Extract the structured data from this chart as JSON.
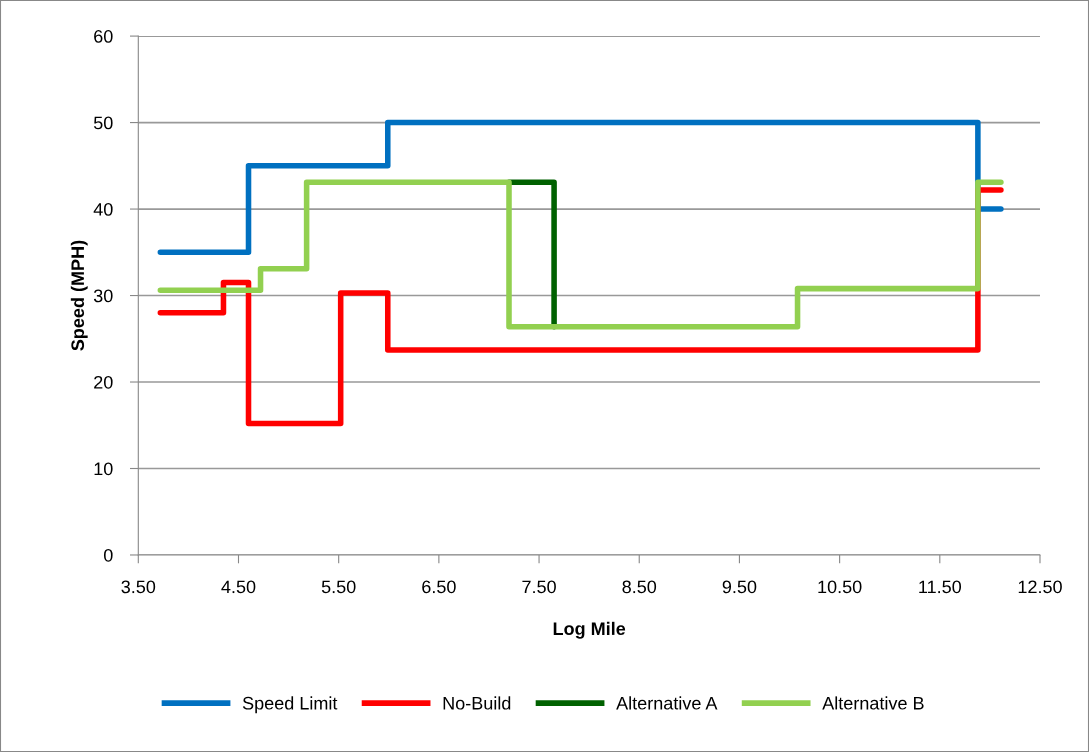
{
  "chart_data": {
    "type": "step",
    "xlabel": "Log Mile",
    "ylabel": "Speed (MPH)",
    "xlim": [
      3.5,
      12.5
    ],
    "xticks": [
      {
        "value": 3.5,
        "label": "3.50"
      },
      {
        "value": 4.5,
        "label": "4.50"
      },
      {
        "value": 5.5,
        "label": "5.50"
      },
      {
        "value": 6.5,
        "label": "6.50"
      },
      {
        "value": 7.5,
        "label": "7.50"
      },
      {
        "value": 8.5,
        "label": "8.50"
      },
      {
        "value": 9.5,
        "label": "9.50"
      },
      {
        "value": 10.5,
        "label": "10.50"
      },
      {
        "value": 11.5,
        "label": "11.50"
      },
      {
        "value": 12.5,
        "label": "12.50"
      }
    ],
    "ylim": [
      0,
      60
    ],
    "yticks": [
      0,
      10,
      20,
      30,
      40,
      50,
      60
    ],
    "grid": "y",
    "legend": "bottom",
    "marker": "none",
    "line_style": "solid",
    "series": [
      {
        "name": "Speed Limit",
        "color": "#0070c0",
        "x": [
          3.72,
          4.6,
          5.99,
          11.88,
          12.11
        ],
        "values": [
          35,
          45,
          50,
          40,
          40
        ]
      },
      {
        "name": "No-Build",
        "color": "#ff0000",
        "x": [
          3.72,
          4.35,
          4.6,
          5.52,
          5.99,
          11.88,
          12.11
        ],
        "values": [
          28,
          31.5,
          15.2,
          30.3,
          23.7,
          42.2,
          42.2
        ]
      },
      {
        "name": "Alternative A",
        "color": "#006100",
        "x": [
          7.2,
          7.65
        ],
        "values": [
          43.1,
          26.4
        ]
      },
      {
        "name": "Alternative B",
        "color": "#92d050",
        "x": [
          3.72,
          4.72,
          5.18,
          7.2,
          10.08,
          11.88,
          12.11
        ],
        "values": [
          30.6,
          33.1,
          43.1,
          26.4,
          30.8,
          43.1,
          43.1
        ]
      }
    ]
  }
}
